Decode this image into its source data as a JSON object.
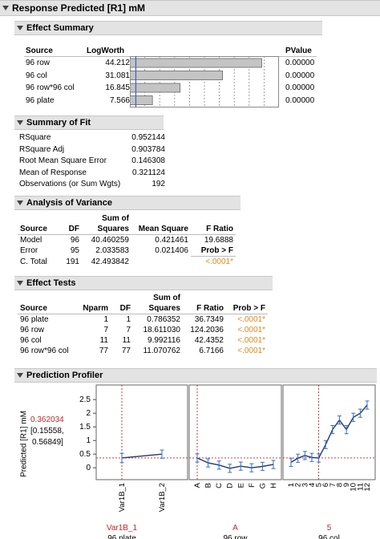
{
  "report_title": "Response Predicted [R1] mM",
  "effect_summary": {
    "title": "Effect Summary",
    "headers": {
      "source": "Source",
      "logworth": "LogWorth",
      "pvalue": "PValue"
    },
    "rows": [
      {
        "source": "96 row",
        "logworth": "44.212",
        "pvalue": "0.00000",
        "value": 44.212
      },
      {
        "source": "96 col",
        "logworth": "31.081",
        "pvalue": "0.00000",
        "value": 31.081
      },
      {
        "source": "96 row*96 col",
        "logworth": "16.845",
        "pvalue": "0.00000",
        "value": 16.845
      },
      {
        "source": "96 plate",
        "logworth": "7.566",
        "pvalue": "0.00000",
        "value": 7.566
      }
    ]
  },
  "summary_of_fit": {
    "title": "Summary of Fit",
    "rows": [
      {
        "label": "RSquare",
        "value": "0.952144"
      },
      {
        "label": "RSquare Adj",
        "value": "0.903784"
      },
      {
        "label": "Root Mean Square Error",
        "value": "0.146308"
      },
      {
        "label": "Mean of Response",
        "value": "0.321124"
      },
      {
        "label": "Observations (or Sum Wgts)",
        "value": "192"
      }
    ]
  },
  "anova": {
    "title": "Analysis of Variance",
    "headers": {
      "source": "Source",
      "df": "DF",
      "ss1": "Sum of",
      "ss2": "Squares",
      "ms": "Mean Square",
      "f": "F Ratio"
    },
    "rows": [
      {
        "source": "Model",
        "df": "96",
        "ss": "40.460259",
        "ms": "0.421461",
        "f": "19.6888"
      },
      {
        "source": "Error",
        "df": "95",
        "ss": "2.033583",
        "ms": "0.021406",
        "f": "Prob > F"
      },
      {
        "source": "C. Total",
        "df": "191",
        "ss": "42.493842",
        "ms": "",
        "f": "<.0001*"
      }
    ]
  },
  "effect_tests": {
    "title": "Effect Tests",
    "headers": {
      "source": "Source",
      "nparm": "Nparm",
      "df": "DF",
      "ss1": "Sum of",
      "ss2": "Squares",
      "f": "F Ratio",
      "p": "Prob > F"
    },
    "rows": [
      {
        "source": "96 plate",
        "nparm": "1",
        "df": "1",
        "ss": "0.786352",
        "f": "36.7349",
        "p": "<.0001*"
      },
      {
        "source": "96 row",
        "nparm": "7",
        "df": "7",
        "ss": "18.611030",
        "f": "124.2036",
        "p": "<.0001*"
      },
      {
        "source": "96 col",
        "nparm": "11",
        "df": "11",
        "ss": "9.992116",
        "f": "42.4352",
        "p": "<.0001*"
      },
      {
        "source": "96 row*96 col",
        "nparm": "77",
        "df": "77",
        "ss": "11.070762",
        "f": "6.7166",
        "p": "<.0001*"
      }
    ]
  },
  "profiler": {
    "title": "Prediction Profiler",
    "ylabel": "Predicted [R1] mM",
    "current_value": "0.362034",
    "ci_low": "[0.15558,",
    "ci_high": "0.56849]",
    "yticks": [
      "2.5",
      "2",
      "1.5",
      "1",
      "0.5",
      "0"
    ],
    "factors": [
      {
        "name": "96 plate",
        "current": "Var1B_1",
        "levels": [
          "Var1B_1",
          "Var1B_2"
        ]
      },
      {
        "name": "96 row",
        "current": "A",
        "levels": [
          "A",
          "B",
          "C",
          "D",
          "E",
          "F",
          "G",
          "H"
        ]
      },
      {
        "name": "96 col",
        "current": "5",
        "levels": [
          "1",
          "2",
          "3",
          "4",
          "5",
          "6",
          "7",
          "8",
          "9",
          "10",
          "11",
          "12"
        ]
      }
    ]
  },
  "chart_data": {
    "type": "line",
    "ylabel": "Predicted [R1] mM",
    "ylim": [
      -0.2,
      2.8
    ],
    "panels": [
      {
        "factor": "96 plate",
        "x": [
          "Var1B_1",
          "Var1B_2"
        ],
        "y": [
          0.36,
          0.5
        ],
        "err": [
          0.17,
          0.15
        ]
      },
      {
        "factor": "96 row",
        "x": [
          "A",
          "B",
          "C",
          "D",
          "E",
          "F",
          "G",
          "H"
        ],
        "y": [
          0.36,
          0.18,
          0.1,
          -0.02,
          0.06,
          0.0,
          0.05,
          0.12
        ],
        "err": [
          0.15,
          0.15,
          0.15,
          0.15,
          0.15,
          0.15,
          0.15,
          0.15
        ]
      },
      {
        "factor": "96 col",
        "x": [
          "1",
          "2",
          "3",
          "4",
          "5",
          "6",
          "7",
          "8",
          "9",
          "10",
          "11",
          "12"
        ],
        "y": [
          0.2,
          0.35,
          0.45,
          0.38,
          0.36,
          0.85,
          1.4,
          1.75,
          1.4,
          1.85,
          2.0,
          2.3
        ],
        "err": [
          0.15,
          0.15,
          0.15,
          0.15,
          0.15,
          0.15,
          0.15,
          0.15,
          0.15,
          0.15,
          0.15,
          0.15
        ]
      }
    ]
  }
}
